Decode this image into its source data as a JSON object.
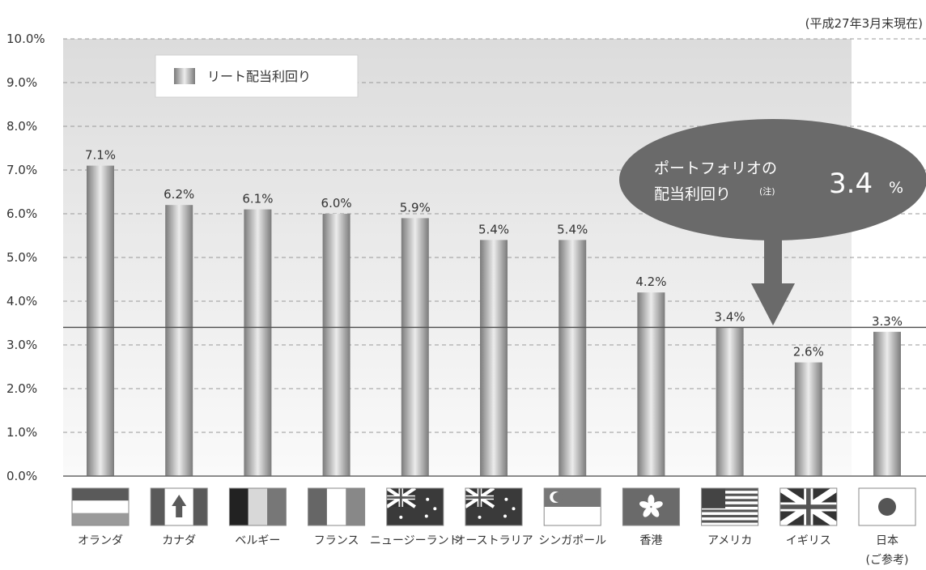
{
  "note": "(平成27年3月末現在)",
  "colors": {
    "panel": "#e4e4e4",
    "bar_dark": "#7a7a7a",
    "bar_light": "#ececec",
    "callout": "#6a6a6a",
    "reference_line": "#555555"
  },
  "legend": {
    "label": "リート配当利回り",
    "position": "top-left"
  },
  "callout": {
    "line1": "ポートフォリオの",
    "line2": "配当利回り",
    "note_mark": "(注)",
    "value": "3.4",
    "unit": "%"
  },
  "chart_data": {
    "type": "bar",
    "title": "",
    "xlabel": "",
    "ylabel": "",
    "ylim": [
      0,
      10
    ],
    "yticks": [
      "0.0%",
      "1.0%",
      "2.0%",
      "3.0%",
      "4.0%",
      "5.0%",
      "6.0%",
      "7.0%",
      "8.0%",
      "9.0%",
      "10.0%"
    ],
    "grid": true,
    "reference_line": 3.4,
    "categories": [
      "オランダ",
      "カナダ",
      "ベルギー",
      "フランス",
      "ニュージーランド",
      "オーストラリア",
      "シンガポール",
      "香港",
      "アメリカ",
      "イギリス",
      "日本"
    ],
    "category_sub": [
      "",
      "",
      "",
      "",
      "",
      "",
      "",
      "",
      "",
      "",
      "(ご参考)"
    ],
    "flags": [
      "netherlands-flag",
      "canada-flag",
      "belgium-flag",
      "france-flag",
      "new-zealand-flag",
      "australia-flag",
      "singapore-flag",
      "hong-kong-flag",
      "usa-flag",
      "uk-flag",
      "japan-flag"
    ],
    "series": [
      {
        "values": [
          7.1,
          6.2,
          6.1,
          6.0,
          5.9,
          5.4,
          5.4,
          4.2,
          3.4,
          2.6,
          3.3
        ],
        "labels": [
          "7.1%",
          "6.2%",
          "6.1%",
          "6.0%",
          "5.9%",
          "5.4%",
          "5.4%",
          "4.2%",
          "3.4%",
          "2.6%",
          "3.3%"
        ]
      }
    ]
  }
}
